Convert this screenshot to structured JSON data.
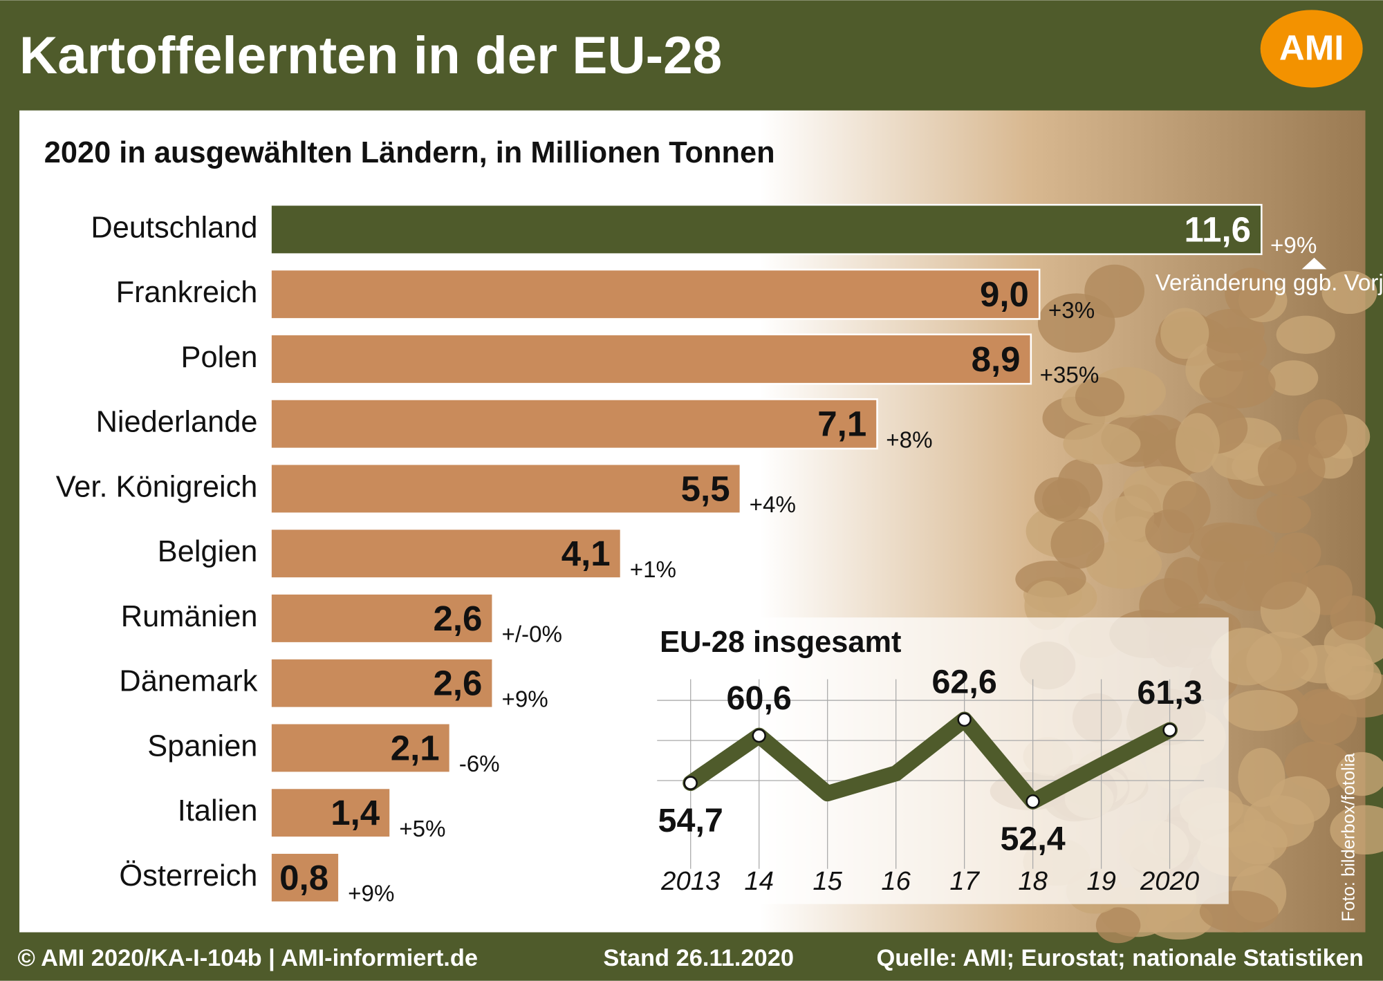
{
  "header": {
    "title": "Kartoffelernten in der EU-28",
    "logo": "AMI"
  },
  "chart_data": [
    {
      "type": "bar",
      "subtitle": "2020 in ausgewählten Ländern, in Millionen Tonnen",
      "categories": [
        "Deutschland",
        "Frankreich",
        "Polen",
        "Niederlande",
        "Ver. Königreich",
        "Belgien",
        "Rumänien",
        "Dänemark",
        "Spanien",
        "Italien",
        "Österreich"
      ],
      "values": [
        11.6,
        9.0,
        8.9,
        7.1,
        5.5,
        4.1,
        2.6,
        2.6,
        2.1,
        1.4,
        0.8
      ],
      "value_labels": [
        "11,6",
        "9,0",
        "8,9",
        "7,1",
        "5,5",
        "4,1",
        "2,6",
        "2,6",
        "2,1",
        "1,4",
        "0,8"
      ],
      "annotations": [
        "+9%",
        "+3%",
        "+35%",
        "+8%",
        "+4%",
        "+1%",
        "+/-0%",
        "+9%",
        "-6%",
        "+5%",
        "+9%"
      ],
      "note": "Veränderung ggb. Vorjahr",
      "colors": [
        "#4f5b2b",
        "#c98b5b",
        "#c98b5b",
        "#c98b5b",
        "#c98b5b",
        "#c98b5b",
        "#c98b5b",
        "#c98b5b",
        "#c98b5b",
        "#c98b5b",
        "#c98b5b"
      ],
      "xlim": [
        0,
        12
      ]
    },
    {
      "type": "line",
      "title": "EU-28 insgesamt",
      "categories": [
        "2013",
        "14",
        "15",
        "16",
        "17",
        "18",
        "19",
        "2020"
      ],
      "values": [
        54.7,
        60.6,
        53.4,
        55.9,
        62.6,
        52.4,
        56.9,
        61.3
      ],
      "value_labels": [
        "54,7",
        "60,6",
        null,
        null,
        "62,6",
        "52,4",
        null,
        "61,3"
      ],
      "color": "#4f5b2b",
      "ylim": [
        50,
        65
      ],
      "yticks": [
        55,
        60,
        65
      ],
      "grid": true
    }
  ],
  "footer": {
    "left": "© AMI 2020/KA-I-104b | AMI-informiert.de",
    "center": "Stand 26.11.2020",
    "right": "Quelle: AMI; Eurostat; nationale Statistiken",
    "credit": "Foto: bilderbox/fotolia"
  }
}
